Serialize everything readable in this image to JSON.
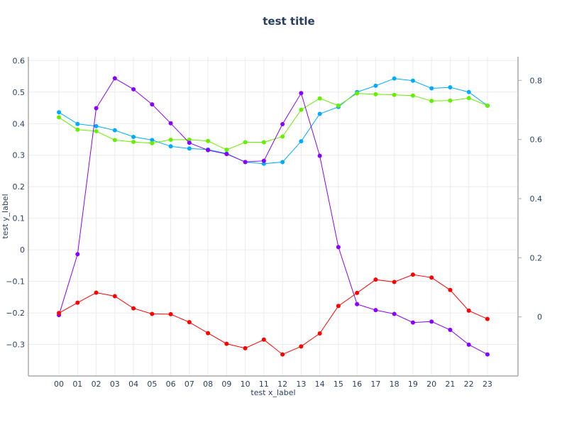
{
  "chart_data": {
    "type": "line",
    "title": "test title",
    "xlabel": "test x_label",
    "ylabel": "test y_label",
    "categories": [
      "00",
      "01",
      "02",
      "03",
      "04",
      "05",
      "06",
      "07",
      "08",
      "09",
      "10",
      "11",
      "12",
      "13",
      "14",
      "15",
      "16",
      "17",
      "18",
      "19",
      "20",
      "21",
      "22",
      "23"
    ],
    "xlim": [
      -1.64,
      24.64
    ],
    "ylim": [
      -0.4,
      0.612
    ],
    "y2lim": [
      -0.2,
      0.88
    ],
    "yticks": [
      -0.3,
      -0.2,
      -0.1,
      0,
      0.1,
      0.2,
      0.3,
      0.4,
      0.5,
      0.6
    ],
    "ytick_labels": [
      "−0.3",
      "−0.2",
      "−0.1",
      "0",
      "0.1",
      "0.2",
      "0.3",
      "0.4",
      "0.5",
      "0.6"
    ],
    "y2ticks": [
      0,
      0.2,
      0.4,
      0.6,
      0.8
    ],
    "y2tick_labels": [
      "0",
      "0.2",
      "0.4",
      "0.6",
      "0.8"
    ],
    "grid": true,
    "series": [
      {
        "name": "blue",
        "axis": "y",
        "color": "#00aaff",
        "values": [
          0.436,
          0.399,
          0.392,
          0.379,
          0.358,
          0.348,
          0.328,
          0.321,
          0.318,
          0.305,
          0.278,
          0.273,
          0.278,
          0.344,
          0.431,
          0.453,
          0.5,
          0.52,
          0.543,
          0.536,
          0.512,
          0.515,
          0.5,
          0.457
        ]
      },
      {
        "name": "green",
        "axis": "y",
        "color": "#66ee00",
        "values": [
          0.42,
          0.381,
          0.376,
          0.348,
          0.342,
          0.338,
          0.349,
          0.349,
          0.345,
          0.317,
          0.341,
          0.341,
          0.359,
          0.444,
          0.48,
          0.457,
          0.496,
          0.493,
          0.491,
          0.489,
          0.472,
          0.473,
          0.481,
          0.457
        ]
      },
      {
        "name": "purple",
        "axis": "y2",
        "color": "#8800ff",
        "values": [
          0.006,
          0.212,
          0.706,
          0.807,
          0.77,
          0.719,
          0.655,
          0.589,
          0.564,
          0.551,
          0.524,
          0.528,
          0.652,
          0.757,
          0.545,
          0.236,
          0.043,
          0.023,
          0.01,
          -0.019,
          -0.016,
          -0.044,
          -0.094,
          -0.127
        ]
      },
      {
        "name": "red",
        "axis": "y2",
        "color": "#ff0000",
        "values": [
          0.013,
          0.048,
          0.082,
          0.07,
          0.029,
          0.01,
          0.009,
          -0.018,
          -0.055,
          -0.091,
          -0.106,
          -0.077,
          -0.127,
          -0.1,
          -0.056,
          0.037,
          0.081,
          0.126,
          0.118,
          0.143,
          0.133,
          0.091,
          0.021,
          -0.007
        ]
      }
    ]
  }
}
